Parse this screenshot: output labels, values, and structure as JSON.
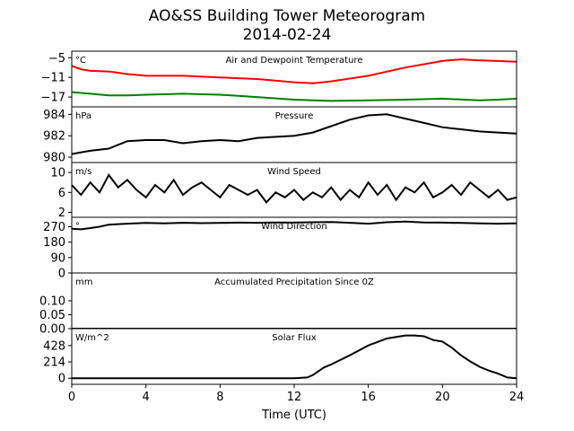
{
  "title": "AO&SS Building Tower Meteorogram",
  "subtitle": "2014-02-24",
  "chart_data": {
    "type": "line",
    "xlabel": "Time (UTC)",
    "xlim": [
      0,
      24
    ],
    "xticks": [
      0,
      4,
      8,
      12,
      16,
      20,
      24
    ],
    "panels": [
      {
        "label": "Air and Dewpoint Temperature",
        "unit": "°C",
        "ylim": [
          -20,
          -3
        ],
        "yticks": [
          -5,
          -11,
          -17
        ],
        "series": [
          {
            "color": "#ff0000",
            "x": [
              0,
              0.5,
              1,
              2,
              3,
              4,
              6,
              8,
              10,
              12,
              13,
              14,
              16,
              18,
              20,
              21,
              22,
              23,
              24
            ],
            "y": [
              -7.5,
              -8.5,
              -9.0,
              -9.2,
              -10.0,
              -10.5,
              -10.5,
              -11.0,
              -11.5,
              -12.5,
              -12.8,
              -12.2,
              -10.5,
              -8.0,
              -6.0,
              -5.5,
              -5.8,
              -6.0,
              -6.2
            ]
          },
          {
            "color": "#008000",
            "x": [
              0,
              1,
              2,
              3,
              4,
              6,
              8,
              10,
              12,
              14,
              16,
              18,
              20,
              22,
              23,
              24
            ],
            "y": [
              -15.5,
              -16.0,
              -16.5,
              -16.5,
              -16.3,
              -16.0,
              -16.3,
              -17.0,
              -17.8,
              -18.2,
              -18.0,
              -17.8,
              -17.5,
              -18.0,
              -17.8,
              -17.5
            ]
          }
        ]
      },
      {
        "label": "Pressure",
        "unit": "hPa",
        "ylim": [
          979.5,
          984.7
        ],
        "yticks": [
          984,
          982,
          980
        ],
        "series": [
          {
            "color": "#000000",
            "x": [
              0,
              1,
              2,
              3,
              4,
              5,
              6,
              7,
              8,
              9,
              10,
              11,
              12,
              13,
              14,
              15,
              16,
              17,
              18,
              19,
              20,
              21,
              22,
              23,
              24
            ],
            "y": [
              980.3,
              980.6,
              980.8,
              981.5,
              981.6,
              981.6,
              981.3,
              981.5,
              981.6,
              981.5,
              981.8,
              981.9,
              982.0,
              982.3,
              982.9,
              983.5,
              983.9,
              984.0,
              983.6,
              983.2,
              982.8,
              982.6,
              982.4,
              982.3,
              982.2
            ]
          }
        ]
      },
      {
        "label": "Wind Speed",
        "unit": "m/s",
        "ylim": [
          1,
          12
        ],
        "yticks": [
          10,
          6,
          2
        ],
        "series": [
          {
            "color": "#000000",
            "x": [
              0,
              0.5,
              1,
              1.5,
              2,
              2.5,
              3,
              3.5,
              4,
              4.5,
              5,
              5.5,
              6,
              6.5,
              7,
              7.5,
              8,
              8.5,
              9,
              9.5,
              10,
              10.5,
              11,
              11.5,
              12,
              12.5,
              13,
              13.5,
              14,
              14.5,
              15,
              15.5,
              16,
              16.5,
              17,
              17.5,
              18,
              18.5,
              19,
              19.5,
              20,
              20.5,
              21,
              21.5,
              22,
              22.5,
              23,
              23.5,
              24
            ],
            "y": [
              7.5,
              5.5,
              8.0,
              6.0,
              9.5,
              7.0,
              8.5,
              6.5,
              5.0,
              7.5,
              6.0,
              8.5,
              5.5,
              7.0,
              8.0,
              6.5,
              5.0,
              7.5,
              6.5,
              5.5,
              6.5,
              4.0,
              6.0,
              5.0,
              6.5,
              4.5,
              6.0,
              5.0,
              7.0,
              4.5,
              6.5,
              5.0,
              8.0,
              5.5,
              7.5,
              4.5,
              7.0,
              6.0,
              8.0,
              5.0,
              6.0,
              7.5,
              5.5,
              8.0,
              6.5,
              5.0,
              6.5,
              4.5,
              5.0
            ]
          }
        ]
      },
      {
        "label": "Wind Direction",
        "unit": "°",
        "ylim": [
          0,
          325
        ],
        "yticks": [
          270,
          180,
          90,
          0
        ],
        "series": [
          {
            "color": "#000000",
            "x": [
              0,
              0.5,
              1,
              1.5,
              2,
              3,
              4,
              5,
              6,
              7,
              8,
              9,
              10,
              11,
              12,
              13,
              14,
              15,
              16,
              17,
              18,
              19,
              20,
              21,
              22,
              23,
              24
            ],
            "y": [
              258,
              255,
              262,
              270,
              282,
              288,
              292,
              290,
              293,
              291,
              292,
              294,
              293,
              295,
              294,
              296,
              298,
              293,
              288,
              296,
              300,
              295,
              294,
              292,
              290,
              288,
              290
            ]
          }
        ]
      },
      {
        "label": "Accumulated Precipitation Since 0Z",
        "unit": "mm",
        "ylim": [
          0,
          0.2
        ],
        "yticks": [
          0.1,
          0.05,
          0.0
        ],
        "ytick_labels": [
          "0.10",
          "0.05",
          "0.00"
        ],
        "series": [
          {
            "color": "#000000",
            "x": [
              0,
              24
            ],
            "y": [
              0,
              0
            ]
          }
        ]
      },
      {
        "label": "Solar Flux",
        "unit": "W/m^2",
        "ylim": [
          -80,
          650
        ],
        "yticks": [
          428,
          214,
          0
        ],
        "series": [
          {
            "color": "#000000",
            "x": [
              0,
              6,
              12,
              12.7,
              13.0,
              13.3,
              13.6,
              14,
              15,
              16,
              17,
              18,
              18.5,
              19,
              19.5,
              20,
              20.5,
              21,
              21.5,
              22,
              22.5,
              23,
              23.5,
              24
            ],
            "y": [
              0,
              0,
              0,
              10,
              40,
              90,
              140,
              180,
              300,
              430,
              520,
              560,
              560,
              550,
              500,
              480,
              400,
              300,
              220,
              150,
              100,
              60,
              10,
              0
            ]
          }
        ]
      }
    ]
  }
}
